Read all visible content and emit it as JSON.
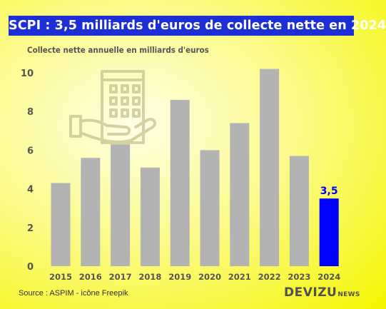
{
  "title": "SCPI : 3,5 milliards d'euros de collecte nette en 2024",
  "subtitle": "Collecte nette annuelle en milliards d'euros",
  "source": "Source : ASPIM - icône Freepik",
  "brand": {
    "main": "DEVIZU",
    "sub": "NEWS"
  },
  "colors": {
    "title_bg": "#1c2fd6",
    "bar": "#b3b3b3",
    "highlight": "#0000ff",
    "background": "#f5f500"
  },
  "icon": "building-on-hand-icon",
  "chart_data": {
    "type": "bar",
    "categories": [
      "2015",
      "2016",
      "2017",
      "2018",
      "2019",
      "2020",
      "2021",
      "2022",
      "2023",
      "2024"
    ],
    "values": [
      4.3,
      5.6,
      6.3,
      5.1,
      8.6,
      6.0,
      7.4,
      10.2,
      5.7,
      3.5
    ],
    "highlight_index": 9,
    "data_labels": [
      {
        "index": 9,
        "text": "3,5"
      }
    ],
    "yticks": [
      "0",
      "2",
      "4",
      "6",
      "8",
      "10"
    ],
    "ylim": [
      0,
      10
    ],
    "grid": false,
    "legend": "none"
  }
}
